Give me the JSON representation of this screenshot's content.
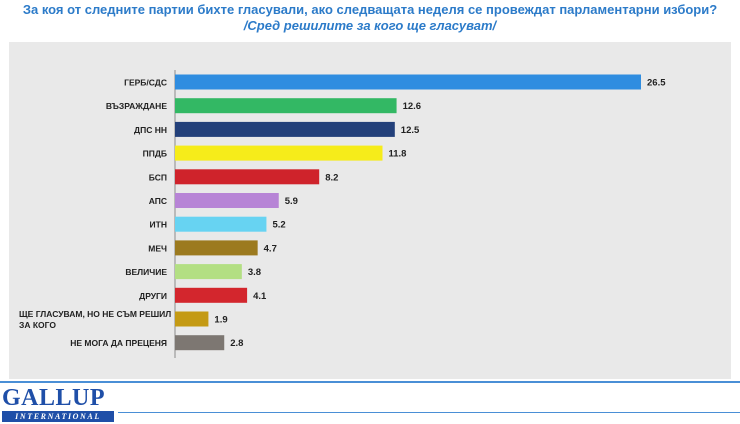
{
  "header": {
    "title": "За коя от следните партии бихте  гласували,  ако следващата неделя се провеждат парламентарни избори?",
    "subtitle": "/Сред решилите за кого ще гласуват/"
  },
  "logo": {
    "word": "GALLUP",
    "sub": "INTERNATIONAL"
  },
  "chart_data": {
    "type": "bar",
    "orientation": "horizontal",
    "categories": [
      "ГЕРБ/СДС",
      "ВЪЗРАЖДАНЕ",
      "ДПС НН",
      "ППДБ",
      "БСП",
      "АПС",
      "ИТН",
      "МЕЧ",
      "ВЕЛИЧИЕ",
      "ДРУГИ",
      "ЩЕ ГЛАСУВАМ, НО НЕ СЪМ РЕШИЛ ЗА КОГО",
      "НЕ МОГА ДА ПРЕЦЕНЯ"
    ],
    "category_lines": [
      [
        "ГЕРБ/СДС"
      ],
      [
        "ВЪЗРАЖДАНЕ"
      ],
      [
        "ДПС НН"
      ],
      [
        "ППДБ"
      ],
      [
        "БСП"
      ],
      [
        "АПС"
      ],
      [
        "ИТН"
      ],
      [
        "МЕЧ"
      ],
      [
        "ВЕЛИЧИЕ"
      ],
      [
        "ДРУГИ"
      ],
      [
        "ЩЕ ГЛАСУВАМ, НО НЕ СЪМ РЕШИЛ",
        "ЗА КОГО"
      ],
      [
        "НЕ МОГА ДА ПРЕЦЕНЯ"
      ]
    ],
    "values": [
      26.5,
      12.6,
      12.5,
      11.8,
      8.2,
      5.9,
      5.2,
      4.7,
      3.8,
      4.1,
      1.9,
      2.8
    ],
    "value_labels": [
      "26.5",
      "12.6",
      "12.5",
      "11.8",
      "8.2",
      "5.9",
      "5.2",
      "4.7",
      "3.8",
      "4.1",
      "1.9",
      "2.8"
    ],
    "colors": [
      "#2f8de0",
      "#33b864",
      "#23407a",
      "#f6ec1a",
      "#cf232b",
      "#b784d6",
      "#67d3f2",
      "#9c7a1f",
      "#b3df83",
      "#d3262d",
      "#c49a14",
      "#7d7772"
    ],
    "xlim": [
      0,
      26.5
    ],
    "grid": false,
    "legend": "none"
  }
}
